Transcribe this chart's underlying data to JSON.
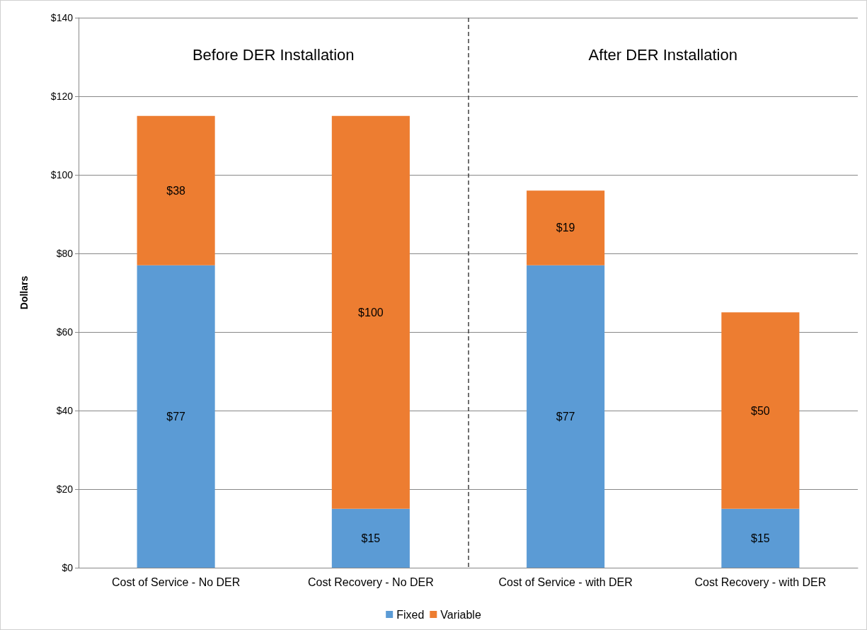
{
  "chart_data": {
    "type": "bar",
    "stacked": true,
    "ylabel": "Dollars",
    "categories": [
      "Cost of Service - No DER",
      "Cost Recovery - No DER",
      "Cost of Service - with DER",
      "Cost Recovery - with DER"
    ],
    "series": [
      {
        "name": "Fixed",
        "color": "#5b9bd5",
        "values": [
          77,
          15,
          77,
          15
        ],
        "value_labels": [
          "$77",
          "$15",
          "$77",
          "$15"
        ]
      },
      {
        "name": "Variable",
        "color": "#ed7d31",
        "values": [
          38,
          100,
          19,
          50
        ],
        "value_labels": [
          "$38",
          "$100",
          "$19",
          "$50"
        ]
      }
    ],
    "ylim": [
      0,
      140
    ],
    "yticks": [
      {
        "value": 0,
        "label": "$0"
      },
      {
        "value": 20,
        "label": "$20"
      },
      {
        "value": 40,
        "label": "$40"
      },
      {
        "value": 60,
        "label": "$60"
      },
      {
        "value": 80,
        "label": "$80"
      },
      {
        "value": 100,
        "label": "$100"
      },
      {
        "value": 120,
        "label": "$120"
      },
      {
        "value": 140,
        "label": "$140"
      }
    ],
    "grid": "y",
    "legend": "bottom",
    "annotations": [
      "Before DER Installation",
      "After DER Installation"
    ]
  }
}
